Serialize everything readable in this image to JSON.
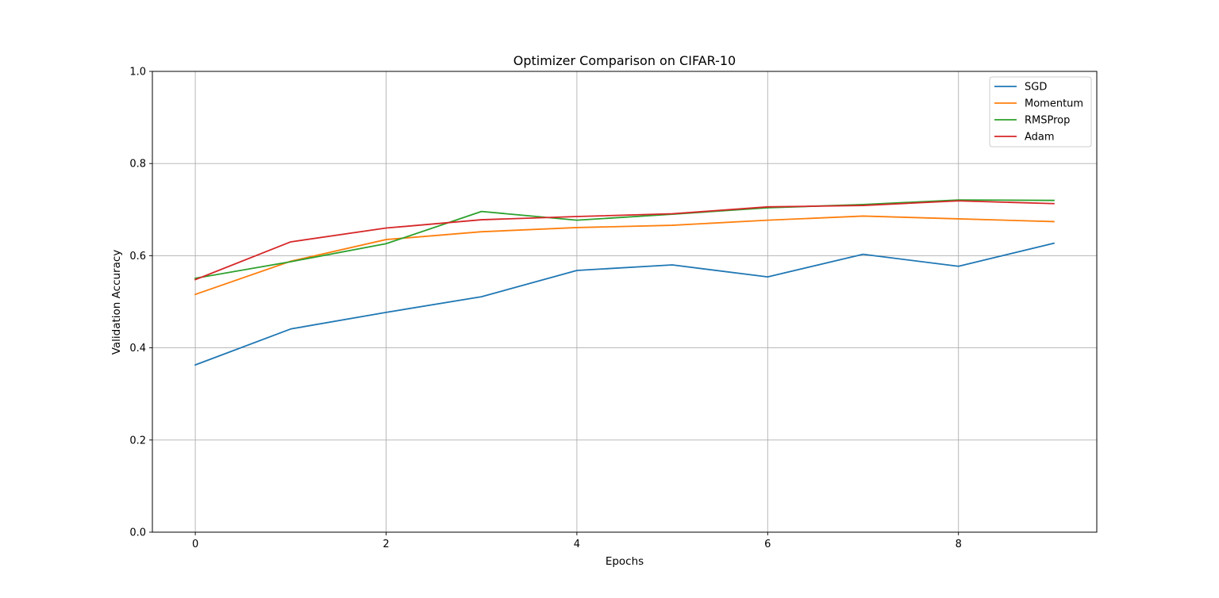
{
  "chart_data": {
    "type": "line",
    "title": "Optimizer Comparison on CIFAR-10",
    "xlabel": "Epochs",
    "ylabel": "Validation Accuracy",
    "xlim": [
      -0.45,
      9.45
    ],
    "ylim": [
      0.0,
      1.0
    ],
    "xticks": [
      0,
      2,
      4,
      6,
      8
    ],
    "xtick_labels": [
      "0",
      "2",
      "4",
      "6",
      "8"
    ],
    "yticks": [
      0.0,
      0.2,
      0.4,
      0.6,
      0.8,
      1.0
    ],
    "ytick_labels": [
      "0.0",
      "0.2",
      "0.4",
      "0.6",
      "0.8",
      "1.0"
    ],
    "grid": true,
    "legend_position": "top-right",
    "x": [
      0,
      1,
      2,
      3,
      4,
      5,
      6,
      7,
      8,
      9
    ],
    "series": [
      {
        "name": "SGD",
        "color": "#1f77b4",
        "values": [
          0.363,
          0.441,
          0.477,
          0.511,
          0.568,
          0.58,
          0.554,
          0.603,
          0.577,
          0.627
        ]
      },
      {
        "name": "Momentum",
        "color": "#ff7f0e",
        "values": [
          0.516,
          0.588,
          0.635,
          0.652,
          0.661,
          0.666,
          0.677,
          0.686,
          0.68,
          0.674
        ]
      },
      {
        "name": "RMSProp",
        "color": "#2ca02c",
        "values": [
          0.551,
          0.587,
          0.626,
          0.696,
          0.677,
          0.69,
          0.704,
          0.711,
          0.721,
          0.72
        ]
      },
      {
        "name": "Adam",
        "color": "#d62728",
        "values": [
          0.548,
          0.63,
          0.66,
          0.678,
          0.685,
          0.691,
          0.706,
          0.709,
          0.719,
          0.713
        ]
      }
    ]
  }
}
